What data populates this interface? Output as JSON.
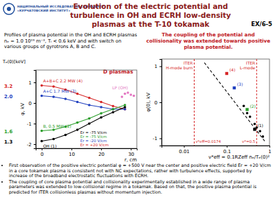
{
  "header": {
    "institute": [
      "НАЦИОНАЛЬНЫЙ ИССЛЕДОВАТЕЛЬСКИЙ ЦЕНТР",
      "«КУРЧАТОВСКИЙ ИНСТИТУТ»"
    ],
    "title": "Evolution of the electric potential and turbulence in OH and ECRH low-density plasmas at the T-10 tokamak",
    "code": "EX/6-5"
  },
  "left_caption": "Profiles of plasma potential in the OH and ECRH plasmas nₑ = 1.0 10¹⁹ m⁻³, Tᵢ < 0.6 keV and with switch on various groups of gyrotrons  A, B and C.",
  "right_caption": "The coupling of the potential and collisionality was extended towards positive plasma potential.",
  "side_label": "D plasmas",
  "chart_data": [
    {
      "type": "line",
      "te_title": "Tₑ(0)[keV]",
      "x_label": "r, cm",
      "y_label": "φ, kV",
      "xlim": [
        -2,
        32
      ],
      "xticks": [
        0,
        10,
        20,
        30
      ],
      "ylim": [
        -2.2,
        1.6
      ],
      "yticks": [
        -2,
        -1,
        0,
        1
      ],
      "series": [
        {
          "name": "A+B+C 2.2 MW (4)",
          "te0": "3.2",
          "color": "#d62728",
          "marker": "circle",
          "x": [
            0,
            4,
            8,
            12,
            16,
            20,
            24,
            28
          ],
          "values": [
            0.85,
            0.8,
            0.65,
            0.45,
            0.25,
            0.05,
            -0.15,
            -0.3
          ]
        },
        {
          "name": "A+C 1.7 MW (3)",
          "te0": "2.0",
          "color": "#1f3fbf",
          "marker": "circle",
          "x": [
            0,
            4,
            8,
            12,
            16,
            20,
            24,
            28
          ],
          "values": [
            0.35,
            0.3,
            0.2,
            0.05,
            -0.1,
            -0.2,
            -0.3,
            -0.3
          ]
        },
        {
          "name": "OH (1)",
          "te0": "1.3",
          "color": "#000000",
          "marker": "circle",
          "x": [
            0,
            4,
            8,
            12,
            16,
            20,
            24,
            28
          ],
          "values": [
            -1.85,
            -1.75,
            -1.55,
            -1.3,
            -1.0,
            -0.7,
            -0.45,
            -0.2
          ]
        },
        {
          "name": "B, 0.5 MW (2)",
          "te0": "1.6",
          "color": "#2a9d2a",
          "marker": "circle",
          "x": [
            0,
            4,
            8,
            12,
            16,
            20,
            24,
            28
          ],
          "values": [
            -1.35,
            -1.3,
            -1.15,
            -0.95,
            -0.75,
            -0.5,
            -0.3,
            -0.1
          ]
        },
        {
          "name": "LP (OH)",
          "type": "scatter",
          "color": "#e377c2",
          "marker": "circle",
          "x": [
            27,
            28,
            29,
            30,
            31
          ],
          "values": [
            0.3,
            0.45,
            0.5,
            0.4,
            0.35
          ]
        }
      ],
      "annotations": [
        {
          "text": "Er = -75 V/cm",
          "x": 13,
          "y": -1.5,
          "color": "#000000"
        },
        {
          "text": "Er = -75 V/cm",
          "x": 13,
          "y": -1.7,
          "color": "#2a9d2a"
        },
        {
          "text": "Er = -20 V/cm",
          "x": 13,
          "y": -1.9,
          "color": "#1f3fbf"
        },
        {
          "text": "Er = +20 V/cm",
          "x": 13,
          "y": -2.1,
          "color": "#d62728"
        }
      ]
    },
    {
      "type": "scatter",
      "x_label": "ν*eff = 0.1RZeff nₑ/Tₑ(0)²",
      "y_label": "φ(0), kV",
      "log": "x",
      "xlim": [
        0.003,
        1
      ],
      "xticks": [
        0.01,
        0.1,
        1
      ],
      "ylim": [
        -1.2,
        1.2
      ],
      "yticks": [
        -1,
        0,
        1
      ],
      "vlines": [
        {
          "x": 0.0174,
          "label": "ITER H-mode burn",
          "sublabel": "ν*eff=0.0174",
          "color": "#d62728"
        },
        {
          "x": 0.5,
          "label": "ITER L-mode",
          "sublabel": "ν*=0.5",
          "color": "#d62728"
        }
      ],
      "series": [
        {
          "type": "line",
          "line_style": "dashed",
          "color": "#000000",
          "x": [
            0.03,
            0.8
          ],
          "values": [
            1.1,
            -1.1
          ]
        },
        {
          "type": "scatter",
          "color": "#000000",
          "marker": "circle",
          "x": [
            0.25,
            0.3,
            0.35,
            0.45,
            0.5,
            0.6,
            0.7
          ],
          "values": [
            -0.1,
            -0.3,
            -0.4,
            -0.6,
            -0.7,
            -0.8,
            -0.95
          ]
        },
        {
          "type": "scatter",
          "marker": "square",
          "colors": [
            "#d62728",
            "#1f3fbf",
            "#2a9d2a",
            "#000000"
          ],
          "x": [
            0.1,
            0.15,
            0.3,
            0.45
          ],
          "values": [
            0.8,
            0.4,
            -0.2,
            -0.75
          ],
          "point_labels": [
            "(4)",
            "(3)",
            "(2)",
            "(1)"
          ]
        }
      ]
    }
  ],
  "bullets": [
    "First observation of the positive electric potential φ = +500 V near the center and positive electric field Er ≈ +20 V/cm in a core tokamak plasma is consistent not with NC expectations, rather with turbulence effects, supported by increase of the broadband electrostatic fluctuations with ECRH.",
    "The coupling of core plasma potential and collisionality experimentally established in a wide range of plasma parameters was extended to low-collisional regime in a tokamak. Based on that, the positive plasma potential is predicted for ITER collisionless plasmas without momentum injection."
  ]
}
